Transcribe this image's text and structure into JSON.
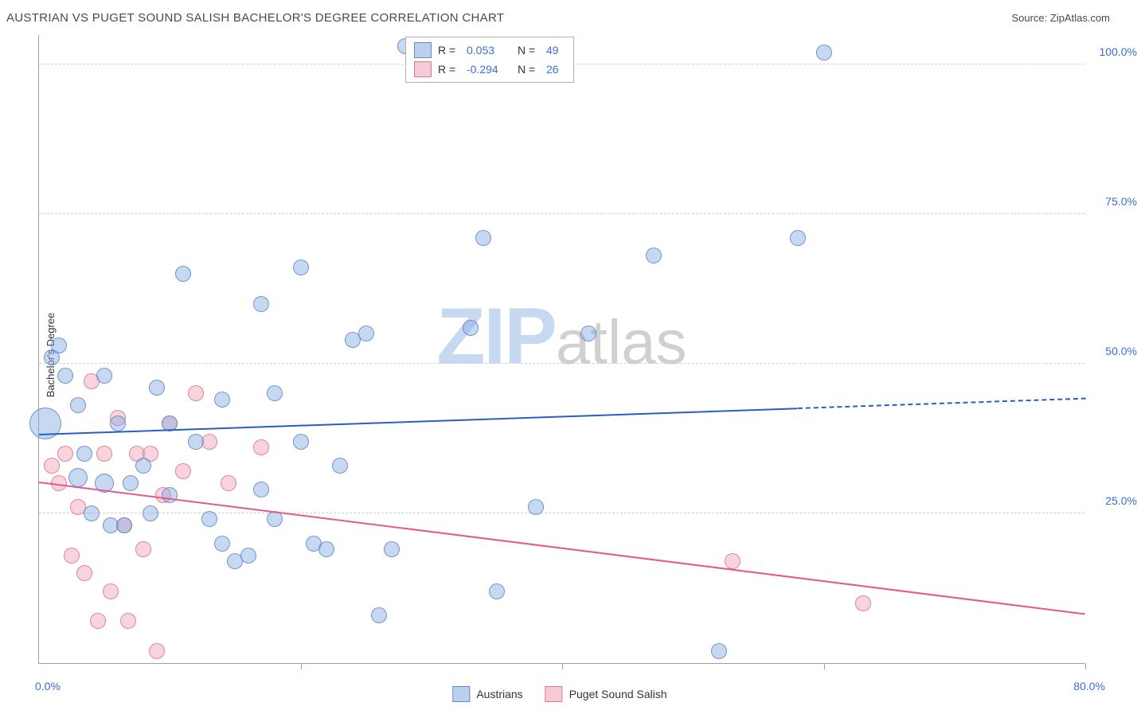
{
  "header": {
    "title": "AUSTRIAN VS PUGET SOUND SALISH BACHELOR'S DEGREE CORRELATION CHART",
    "source": "Source: ZipAtlas.com"
  },
  "chart": {
    "type": "scatter",
    "ylabel": "Bachelor's Degree",
    "xlim": [
      0,
      80
    ],
    "ylim": [
      0,
      105
    ],
    "xtick_positions": [
      0,
      20,
      40,
      60,
      80
    ],
    "xtick_labels": {
      "first": "0.0%",
      "last": "80.0%"
    },
    "ytick_values": [
      25,
      50,
      75,
      100
    ],
    "ytick_labels": [
      "25.0%",
      "50.0%",
      "75.0%",
      "100.0%"
    ],
    "grid_color": "#d0d0d0",
    "axis_color": "#a0a0a0",
    "tick_label_color": "#3b6fd6",
    "background_color": "#ffffff",
    "series": {
      "austrians": {
        "label": "Austrians",
        "color_fill": "rgba(130,170,225,0.45)",
        "color_stroke": "rgba(90,130,200,0.8)",
        "points": [
          {
            "x": 0.5,
            "y": 40,
            "r": 20
          },
          {
            "x": 1,
            "y": 51,
            "r": 10
          },
          {
            "x": 1.5,
            "y": 53,
            "r": 10
          },
          {
            "x": 2,
            "y": 48,
            "r": 10
          },
          {
            "x": 3,
            "y": 43,
            "r": 10
          },
          {
            "x": 3,
            "y": 31,
            "r": 12
          },
          {
            "x": 3.5,
            "y": 35,
            "r": 10
          },
          {
            "x": 4,
            "y": 25,
            "r": 10
          },
          {
            "x": 5,
            "y": 48,
            "r": 10
          },
          {
            "x": 5,
            "y": 30,
            "r": 12
          },
          {
            "x": 5.5,
            "y": 23,
            "r": 10
          },
          {
            "x": 6,
            "y": 40,
            "r": 10
          },
          {
            "x": 6.5,
            "y": 23,
            "r": 10
          },
          {
            "x": 7,
            "y": 30,
            "r": 10
          },
          {
            "x": 8,
            "y": 33,
            "r": 10
          },
          {
            "x": 8.5,
            "y": 25,
            "r": 10
          },
          {
            "x": 9,
            "y": 46,
            "r": 10
          },
          {
            "x": 10,
            "y": 28,
            "r": 10
          },
          {
            "x": 10,
            "y": 40,
            "r": 10
          },
          {
            "x": 11,
            "y": 65,
            "r": 10
          },
          {
            "x": 12,
            "y": 37,
            "r": 10
          },
          {
            "x": 13,
            "y": 24,
            "r": 10
          },
          {
            "x": 14,
            "y": 44,
            "r": 10
          },
          {
            "x": 14,
            "y": 20,
            "r": 10
          },
          {
            "x": 15,
            "y": 17,
            "r": 10
          },
          {
            "x": 16,
            "y": 18,
            "r": 10
          },
          {
            "x": 17,
            "y": 29,
            "r": 10
          },
          {
            "x": 17,
            "y": 60,
            "r": 10
          },
          {
            "x": 18,
            "y": 24,
            "r": 10
          },
          {
            "x": 18,
            "y": 45,
            "r": 10
          },
          {
            "x": 20,
            "y": 66,
            "r": 10
          },
          {
            "x": 20,
            "y": 37,
            "r": 10
          },
          {
            "x": 21,
            "y": 20,
            "r": 10
          },
          {
            "x": 22,
            "y": 19,
            "r": 10
          },
          {
            "x": 23,
            "y": 33,
            "r": 10
          },
          {
            "x": 24,
            "y": 54,
            "r": 10
          },
          {
            "x": 25,
            "y": 55,
            "r": 10
          },
          {
            "x": 26,
            "y": 8,
            "r": 10
          },
          {
            "x": 27,
            "y": 19,
            "r": 10
          },
          {
            "x": 28,
            "y": 103,
            "r": 10
          },
          {
            "x": 33,
            "y": 56,
            "r": 10
          },
          {
            "x": 34,
            "y": 71,
            "r": 10
          },
          {
            "x": 35,
            "y": 12,
            "r": 10
          },
          {
            "x": 38,
            "y": 26,
            "r": 10
          },
          {
            "x": 42,
            "y": 55,
            "r": 10
          },
          {
            "x": 47,
            "y": 68,
            "r": 10
          },
          {
            "x": 52,
            "y": 2,
            "r": 10
          },
          {
            "x": 58,
            "y": 71,
            "r": 10
          },
          {
            "x": 60,
            "y": 102,
            "r": 10
          }
        ],
        "trend": {
          "y_at_xmin": 38,
          "y_at_xmax": 44,
          "solid_until_x": 58
        }
      },
      "salish": {
        "label": "Puget Sound Salish",
        "color_fill": "rgba(240,160,180,0.45)",
        "color_stroke": "rgba(220,110,140,0.8)",
        "points": [
          {
            "x": 1,
            "y": 33,
            "r": 10
          },
          {
            "x": 1.5,
            "y": 30,
            "r": 10
          },
          {
            "x": 2,
            "y": 35,
            "r": 10
          },
          {
            "x": 2.5,
            "y": 18,
            "r": 10
          },
          {
            "x": 3,
            "y": 26,
            "r": 10
          },
          {
            "x": 3.5,
            "y": 15,
            "r": 10
          },
          {
            "x": 4,
            "y": 47,
            "r": 10
          },
          {
            "x": 4.5,
            "y": 7,
            "r": 10
          },
          {
            "x": 5,
            "y": 35,
            "r": 10
          },
          {
            "x": 5.5,
            "y": 12,
            "r": 10
          },
          {
            "x": 6,
            "y": 41,
            "r": 10
          },
          {
            "x": 6.5,
            "y": 23,
            "r": 10
          },
          {
            "x": 6.8,
            "y": 7,
            "r": 10
          },
          {
            "x": 7.5,
            "y": 35,
            "r": 10
          },
          {
            "x": 8,
            "y": 19,
            "r": 10
          },
          {
            "x": 8.5,
            "y": 35,
            "r": 10
          },
          {
            "x": 9,
            "y": 2,
            "r": 10
          },
          {
            "x": 9.5,
            "y": 28,
            "r": 10
          },
          {
            "x": 10,
            "y": 40,
            "r": 10
          },
          {
            "x": 11,
            "y": 32,
            "r": 10
          },
          {
            "x": 12,
            "y": 45,
            "r": 10
          },
          {
            "x": 13,
            "y": 37,
            "r": 10
          },
          {
            "x": 14.5,
            "y": 30,
            "r": 10
          },
          {
            "x": 53,
            "y": 17,
            "r": 10
          },
          {
            "x": 63,
            "y": 10,
            "r": 10
          },
          {
            "x": 17,
            "y": 36,
            "r": 10
          }
        ],
        "trend": {
          "y_at_xmin": 30,
          "y_at_xmax": 8,
          "solid_until_x": 80
        }
      }
    },
    "legend_stats": [
      {
        "series": "austrians",
        "swatch": "blue",
        "r_label": "R =",
        "r": "0.053",
        "n_label": "N =",
        "n": "49"
      },
      {
        "series": "salish",
        "swatch": "pink",
        "r_label": "R =",
        "r": "-0.294",
        "n_label": "N =",
        "n": "26"
      }
    ],
    "watermark": {
      "zip": "ZIP",
      "atlas": "atlas"
    }
  },
  "bottom_legend": [
    {
      "swatch": "blue",
      "label": "Austrians"
    },
    {
      "swatch": "pink",
      "label": "Puget Sound Salish"
    }
  ]
}
